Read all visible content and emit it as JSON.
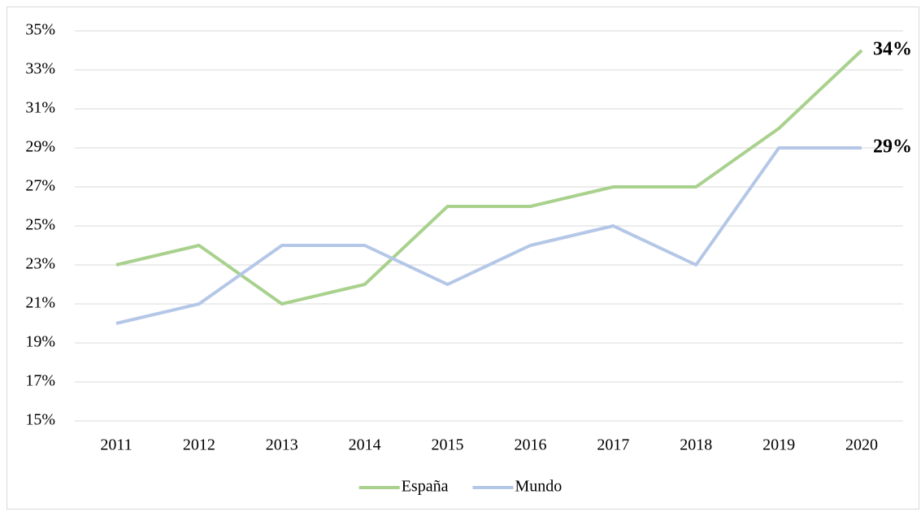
{
  "chart_data": {
    "type": "line",
    "categories": [
      "2011",
      "2012",
      "2013",
      "2014",
      "2015",
      "2016",
      "2017",
      "2018",
      "2019",
      "2020"
    ],
    "series": [
      {
        "name": "España",
        "color": "#a9d18e",
        "values": [
          23,
          24,
          21,
          22,
          26,
          26,
          27,
          27,
          30,
          34
        ],
        "value_labels": [
          null,
          null,
          null,
          null,
          null,
          null,
          null,
          null,
          null,
          "34%"
        ]
      },
      {
        "name": "Mundo",
        "color": "#b4c7e7",
        "values": [
          20,
          21,
          24,
          24,
          22,
          24,
          25,
          23,
          29,
          29
        ],
        "value_labels": [
          null,
          null,
          null,
          null,
          null,
          null,
          null,
          null,
          null,
          "29%"
        ]
      }
    ],
    "ylim": [
      15,
      35
    ],
    "yticks": [
      {
        "value": 15,
        "label": "15%"
      },
      {
        "value": 17,
        "label": "17%"
      },
      {
        "value": 19,
        "label": "19%"
      },
      {
        "value": 21,
        "label": "21%"
      },
      {
        "value": 23,
        "label": "23%"
      },
      {
        "value": 25,
        "label": "25%"
      },
      {
        "value": 27,
        "label": "27%"
      },
      {
        "value": 29,
        "label": "29%"
      },
      {
        "value": 31,
        "label": "31%"
      },
      {
        "value": 33,
        "label": "33%"
      },
      {
        "value": 35,
        "label": "35%"
      }
    ],
    "grid": true,
    "legend": "bottom"
  }
}
